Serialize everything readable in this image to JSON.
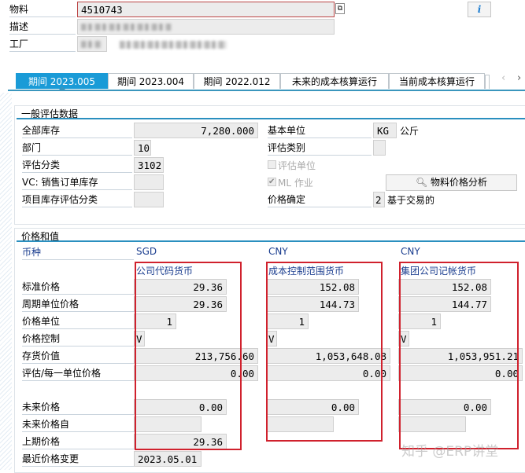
{
  "header": {
    "material_label": "物料",
    "material_value": "4510743",
    "description_label": "描述",
    "plant_label": "工厂",
    "info_icon": "i"
  },
  "tabs": [
    {
      "label": "期间 2023.005",
      "active": true
    },
    {
      "label": "期间 2023.004"
    },
    {
      "label": "期间 2022.012"
    },
    {
      "label": "未来的成本核算运行"
    },
    {
      "label": "当前成本核算运行"
    }
  ],
  "general": {
    "title": "一般评估数据",
    "total_stock_label": "全部库存",
    "total_stock": "7,280.000",
    "division_label": "部门",
    "division": "10",
    "val_class_label": "评估分类",
    "val_class": "3102",
    "vc_label": "VC: 销售订单库存",
    "proj_label": "项目库存评估分类",
    "base_unit_label": "基本单位",
    "base_unit": "KG",
    "base_unit_text": "公斤",
    "val_category_label": "评估类别",
    "val_unit_label": "评估单位",
    "ml_label": "ML 作业",
    "ml_checked": true,
    "analysis_button": "物料价格分析",
    "price_det_label": "价格确定",
    "price_det": "2",
    "price_det_text": "基于交易的"
  },
  "prices": {
    "title": "价格和值",
    "currency_label": "币种",
    "row_labels": [
      "标准价格",
      "周期单位价格",
      "价格单位",
      "价格控制",
      "存货价值",
      "评估/每一单位价格",
      "未来价格",
      "未来价格自",
      "上期价格",
      "最近价格变更"
    ],
    "columns": [
      {
        "currency": "SGD",
        "type": "公司代码货币",
        "std_price": "29.36",
        "periodic_price": "29.36",
        "price_unit": "1",
        "price_control": "V",
        "stock_value": "213,756.60",
        "val_per_unit": "0.00",
        "future_price": "0.00",
        "future_from": "",
        "prev_price": "29.36",
        "last_change": "2023.05.01"
      },
      {
        "currency": "CNY",
        "type": "成本控制范围货币",
        "std_price": "152.08",
        "periodic_price": "144.73",
        "price_unit": "1",
        "price_control": "V",
        "stock_value": "1,053,648.08",
        "val_per_unit": "0.00",
        "future_price": "0.00",
        "future_from": ""
      },
      {
        "currency": "CNY",
        "type": "集团公司记帐货币",
        "std_price": "152.08",
        "periodic_price": "144.77",
        "price_unit": "1",
        "price_control": "V",
        "stock_value": "1,053,951.21",
        "val_per_unit": "0.00",
        "future_price": "0.00",
        "future_from": ""
      }
    ]
  },
  "watermark": "知乎 @ERP讲堂",
  "colors": {
    "tab_active": "#1a9bd7",
    "highlight_box": "#d0212d",
    "currency_text": "#1a3d8f"
  }
}
